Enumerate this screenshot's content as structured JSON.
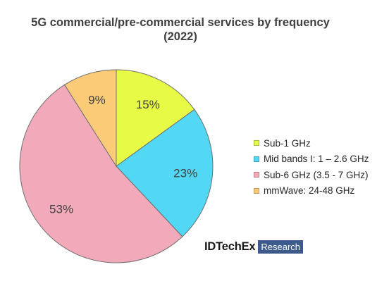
{
  "chart_data": {
    "type": "pie",
    "title": "5G commercial/pre-commercial services by frequency",
    "subtitle": "(2022)",
    "categories": [
      "Sub-1 GHz",
      "Mid bands I: 1 – 2.6 GHz",
      "Sub-6 GHz (3.5 - 7 GHz)",
      "mmWave: 24-48 GHz"
    ],
    "values": [
      15,
      23,
      53,
      9
    ],
    "labels": [
      "15%",
      "23%",
      "53%",
      "9%"
    ],
    "colors": [
      "#e6fa46",
      "#52d8f5",
      "#f2aabb",
      "#fccb78"
    ],
    "legend_position": "right"
  },
  "logo": {
    "brand": "IDTechEx",
    "tag": "Research"
  }
}
